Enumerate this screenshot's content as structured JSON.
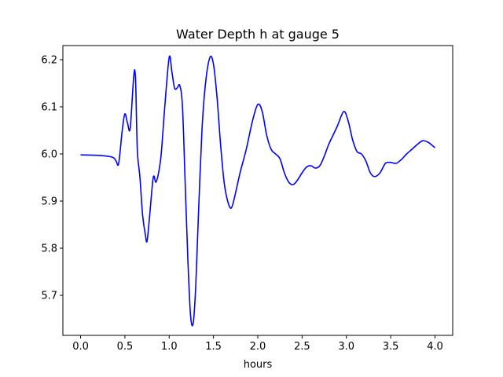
{
  "chart_data": {
    "type": "line",
    "title": "Water Depth h at gauge 5",
    "xlabel": "hours",
    "ylabel": "",
    "xlim": [
      -0.2,
      4.2
    ],
    "ylim": [
      5.615,
      6.23
    ],
    "xticks": [
      0.0,
      0.5,
      1.0,
      1.5,
      2.0,
      2.5,
      3.0,
      3.5,
      4.0
    ],
    "xtick_labels": [
      "0.0",
      "0.5",
      "1.0",
      "1.5",
      "2.0",
      "2.5",
      "3.0",
      "3.5",
      "4.0"
    ],
    "yticks": [
      5.7,
      5.8,
      5.9,
      6.0,
      6.1,
      6.2
    ],
    "ytick_labels": [
      "5.7",
      "5.8",
      "5.9",
      "6.0",
      "6.1",
      "6.2"
    ],
    "grid": false,
    "legend": "none",
    "series": [
      {
        "color": "#0000ff",
        "x": [
          0.0,
          0.2,
          0.36,
          0.4,
          0.43,
          0.47,
          0.5,
          0.53,
          0.56,
          0.6,
          0.62,
          0.64,
          0.67,
          0.7,
          0.73,
          0.75,
          0.78,
          0.82,
          0.85,
          0.88,
          0.91,
          0.95,
          1.0,
          1.03,
          1.06,
          1.09,
          1.12,
          1.15,
          1.18,
          1.21,
          1.24,
          1.27,
          1.3,
          1.33,
          1.37,
          1.41,
          1.46,
          1.5,
          1.54,
          1.58,
          1.62,
          1.66,
          1.7,
          1.74,
          1.8,
          1.87,
          1.94,
          2.0,
          2.05,
          2.1,
          2.15,
          2.2,
          2.25,
          2.3,
          2.35,
          2.4,
          2.45,
          2.5,
          2.55,
          2.6,
          2.65,
          2.7,
          2.75,
          2.8,
          2.85,
          2.9,
          2.97,
          3.02,
          3.07,
          3.12,
          3.17,
          3.22,
          3.27,
          3.32,
          3.38,
          3.44,
          3.5,
          3.56,
          3.62,
          3.68,
          3.74,
          3.8,
          3.86,
          3.92,
          3.97,
          4.0
        ],
        "y": [
          5.998,
          5.997,
          5.993,
          5.985,
          5.98,
          6.05,
          6.085,
          6.065,
          6.055,
          6.165,
          6.16,
          6.01,
          5.95,
          5.87,
          5.83,
          5.815,
          5.87,
          5.95,
          5.94,
          5.96,
          6.0,
          6.1,
          6.205,
          6.175,
          6.14,
          6.14,
          6.145,
          6.1,
          5.94,
          5.78,
          5.66,
          5.64,
          5.72,
          5.87,
          6.05,
          6.15,
          6.205,
          6.19,
          6.12,
          6.02,
          5.94,
          5.9,
          5.885,
          5.91,
          5.96,
          6.01,
          6.07,
          6.105,
          6.09,
          6.04,
          6.01,
          6.0,
          5.99,
          5.96,
          5.94,
          5.935,
          5.945,
          5.96,
          5.972,
          5.975,
          5.97,
          5.975,
          5.995,
          6.02,
          6.04,
          6.06,
          6.09,
          6.07,
          6.03,
          6.005,
          6.0,
          5.985,
          5.96,
          5.952,
          5.96,
          5.98,
          5.982,
          5.98,
          5.988,
          6.0,
          6.01,
          6.02,
          6.028,
          6.025,
          6.018,
          6.013
        ]
      }
    ]
  }
}
